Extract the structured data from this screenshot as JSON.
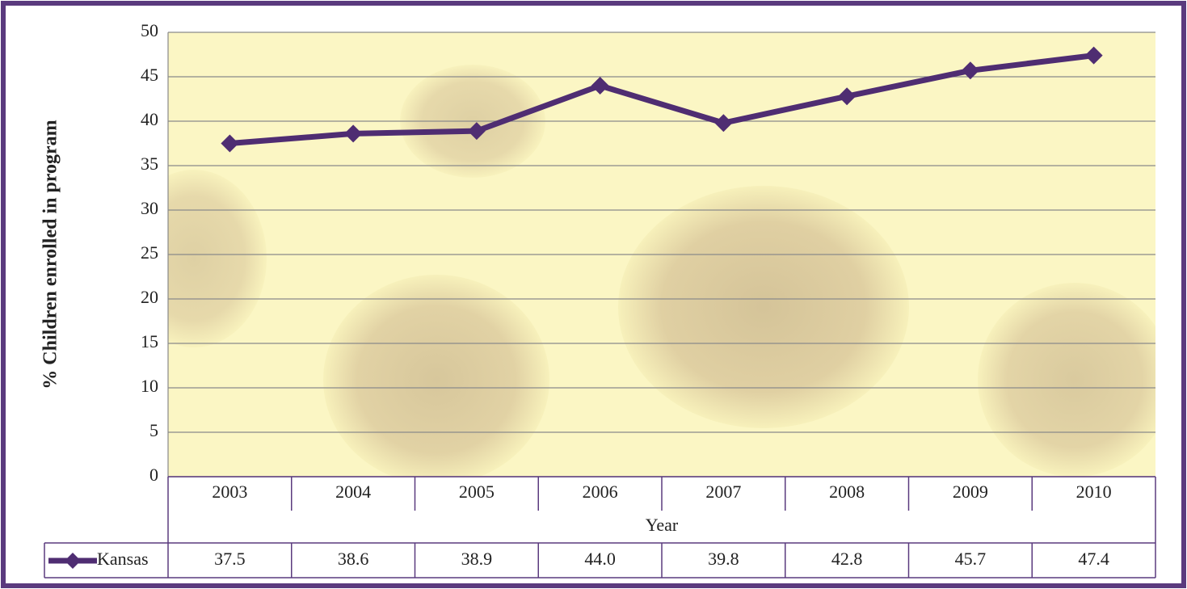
{
  "chart_data": {
    "type": "line",
    "x_label": "Year",
    "y_label": "% Children enrolled in program",
    "categories": [
      "2003",
      "2004",
      "2005",
      "2006",
      "2007",
      "2008",
      "2009",
      "2010"
    ],
    "series": [
      {
        "name": "Kansas",
        "color": "#4f2d72",
        "values": [
          37.5,
          38.6,
          38.9,
          44,
          39.8,
          42.8,
          45.7,
          47.4
        ],
        "value_labels": [
          "37.5",
          "38.6",
          "38.9",
          "44.0",
          "39.8",
          "42.8",
          "45.7",
          "47.4"
        ]
      }
    ],
    "ylim": [
      0,
      50
    ],
    "yticks": [
      0,
      5,
      10,
      15,
      20,
      25,
      30,
      35,
      40,
      45,
      50
    ],
    "grid": true,
    "data_table": true
  }
}
